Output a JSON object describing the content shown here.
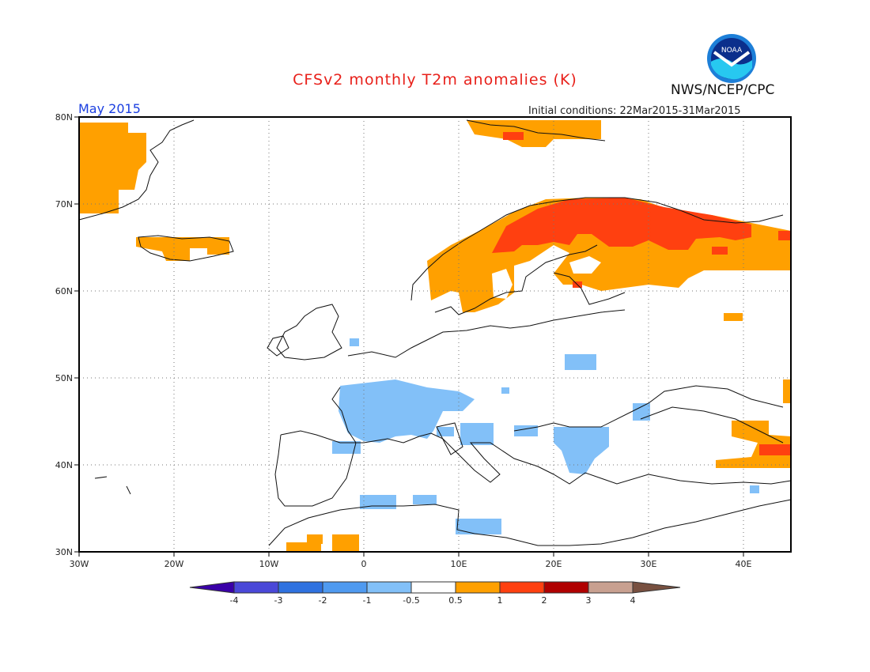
{
  "header": {
    "title": "CFSv2 monthly T2m anomalies (K)",
    "period": "May 2015",
    "initial_conditions": "Initial conditions: 22Mar2015-31Mar2015",
    "agency": "NWS/NCEP/CPC",
    "logo_text": "NOAA"
  },
  "axes": {
    "lon_labels": [
      "30W",
      "20W",
      "10W",
      "0",
      "10E",
      "20E",
      "30E",
      "40E"
    ],
    "lat_labels": [
      "80N",
      "70N",
      "60N",
      "50N",
      "40N",
      "30N"
    ]
  },
  "colorbar": {
    "labels": [
      "-4",
      "-3",
      "-2",
      "-1",
      "-0.5",
      "0.5",
      "1",
      "2",
      "3",
      "4"
    ],
    "colors": [
      "#3a00a8",
      "#4a48d8",
      "#2f72e0",
      "#4f9af0",
      "#82c0f8",
      "#ffffff",
      "#ffa000",
      "#ff4010",
      "#b00000",
      "#c8a090",
      "#785040"
    ]
  },
  "colors": {
    "title": "#e8201a",
    "period": "#1a3ee0",
    "warm1": "#ffa000",
    "warm2": "#ff4010",
    "cool1": "#82c0f8"
  }
}
